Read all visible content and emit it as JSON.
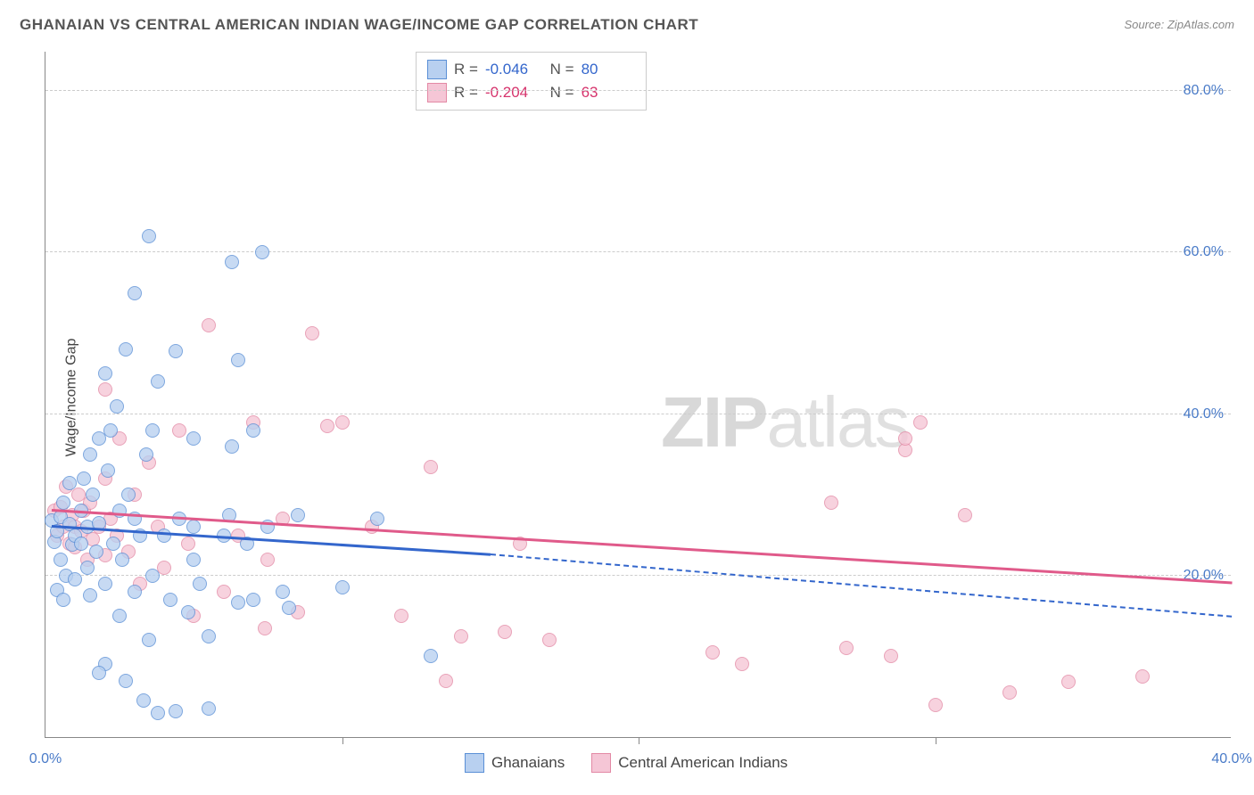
{
  "header": {
    "title": "GHANAIAN VS CENTRAL AMERICAN INDIAN WAGE/INCOME GAP CORRELATION CHART",
    "source_prefix": "Source: ",
    "source_name": "ZipAtlas.com"
  },
  "watermark": {
    "zip": "ZIP",
    "atlas": "atlas"
  },
  "chart": {
    "type": "scatter",
    "ylabel": "Wage/Income Gap",
    "xlim": [
      0,
      40
    ],
    "ylim": [
      0,
      85
    ],
    "xtick_step": 10,
    "ytick_step": 20,
    "xtick_format_suffix": "%",
    "ytick_format_suffix": "%",
    "xtick_labels": [
      "0.0%",
      "40.0%"
    ],
    "ytick_labels": [
      "20.0%",
      "40.0%",
      "60.0%",
      "80.0%"
    ],
    "background_color": "#ffffff",
    "grid_color": "#cccccc",
    "axis_color": "#888888",
    "label_color_axis": "#4a7bc8",
    "marker_radius": 8,
    "marker_stroke_width": 1.5,
    "series": [
      {
        "name": "Ghanaians",
        "color_fill": "#b8d0f0",
        "color_stroke": "#5a8fd6",
        "color_value": "#3366cc",
        "R": "-0.046",
        "N": "80",
        "trend": {
          "x1": 0.2,
          "y1": 26,
          "x2": 15,
          "y2": 22.5,
          "solid_until_x": 15,
          "dash_to_x": 40,
          "dash_to_y": 14.8
        },
        "points": [
          [
            0.2,
            26.8
          ],
          [
            0.3,
            24.2
          ],
          [
            0.4,
            25.5
          ],
          [
            0.5,
            27.3
          ],
          [
            0.5,
            22.0
          ],
          [
            0.6,
            29.0
          ],
          [
            0.7,
            20.0
          ],
          [
            0.8,
            26.4
          ],
          [
            0.8,
            31.5
          ],
          [
            0.9,
            23.8
          ],
          [
            1.0,
            25.0
          ],
          [
            0.4,
            18.2
          ],
          [
            0.6,
            17.0
          ],
          [
            1.0,
            19.5
          ],
          [
            1.2,
            24.0
          ],
          [
            1.2,
            28.0
          ],
          [
            1.3,
            32.0
          ],
          [
            1.4,
            21.0
          ],
          [
            1.4,
            26.0
          ],
          [
            1.5,
            35.0
          ],
          [
            1.5,
            17.5
          ],
          [
            1.6,
            30.0
          ],
          [
            1.7,
            23.0
          ],
          [
            1.8,
            37.0
          ],
          [
            1.8,
            26.5
          ],
          [
            2.0,
            19.0
          ],
          [
            2.0,
            45.0
          ],
          [
            2.1,
            33.0
          ],
          [
            2.2,
            38.0
          ],
          [
            2.3,
            24.0
          ],
          [
            2.4,
            41.0
          ],
          [
            2.5,
            28.0
          ],
          [
            2.5,
            15.0
          ],
          [
            2.6,
            22.0
          ],
          [
            2.7,
            48.0
          ],
          [
            2.8,
            30.0
          ],
          [
            3.0,
            27.0
          ],
          [
            3.0,
            55.0
          ],
          [
            3.0,
            18.0
          ],
          [
            3.2,
            25.0
          ],
          [
            3.4,
            35.0
          ],
          [
            3.5,
            62.0
          ],
          [
            3.5,
            12.0
          ],
          [
            3.6,
            38.0
          ],
          [
            3.6,
            20.0
          ],
          [
            3.8,
            44.0
          ],
          [
            4.0,
            25.0
          ],
          [
            4.2,
            17.0
          ],
          [
            4.4,
            47.8
          ],
          [
            4.5,
            27.0
          ],
          [
            4.8,
            15.5
          ],
          [
            5.0,
            22.0
          ],
          [
            5.0,
            26.0
          ],
          [
            5.0,
            37.0
          ],
          [
            5.2,
            19.0
          ],
          [
            5.5,
            12.5
          ],
          [
            6.0,
            25.0
          ],
          [
            6.2,
            27.5
          ],
          [
            6.3,
            58.8
          ],
          [
            6.3,
            36.0
          ],
          [
            6.5,
            16.7
          ],
          [
            6.5,
            46.7
          ],
          [
            6.8,
            24.0
          ],
          [
            7.0,
            38.0
          ],
          [
            7.0,
            17.0
          ],
          [
            7.3,
            60.0
          ],
          [
            7.5,
            26.0
          ],
          [
            8.0,
            18.0
          ],
          [
            8.2,
            16.0
          ],
          [
            8.5,
            27.5
          ],
          [
            3.8,
            3.0
          ],
          [
            4.4,
            3.2
          ],
          [
            5.5,
            3.5
          ],
          [
            3.3,
            4.5
          ],
          [
            2.7,
            7.0
          ],
          [
            2.0,
            9.0
          ],
          [
            1.8,
            8.0
          ],
          [
            10.0,
            18.5
          ],
          [
            11.2,
            27.0
          ],
          [
            13.0,
            10.0
          ]
        ]
      },
      {
        "name": "Central American Indians",
        "color_fill": "#f5c6d6",
        "color_stroke": "#e389a5",
        "color_value": "#d6336c",
        "R": "-0.204",
        "N": "63",
        "trend": {
          "x1": 0.2,
          "y1": 28,
          "x2": 40,
          "y2": 19,
          "solid_until_x": 40
        },
        "points": [
          [
            0.3,
            28.0
          ],
          [
            0.4,
            25.0
          ],
          [
            0.5,
            28.5
          ],
          [
            0.6,
            26.0
          ],
          [
            0.7,
            31.0
          ],
          [
            0.8,
            24.0
          ],
          [
            0.9,
            27.5
          ],
          [
            1.0,
            26.0
          ],
          [
            1.0,
            23.5
          ],
          [
            1.1,
            30.0
          ],
          [
            1.2,
            25.5
          ],
          [
            1.3,
            28.0
          ],
          [
            1.4,
            22.0
          ],
          [
            1.5,
            29.0
          ],
          [
            1.6,
            24.5
          ],
          [
            1.8,
            26.0
          ],
          [
            2.0,
            32.0
          ],
          [
            2.0,
            22.5
          ],
          [
            2.2,
            27.0
          ],
          [
            2.4,
            25.0
          ],
          [
            2.5,
            37.0
          ],
          [
            2.8,
            23.0
          ],
          [
            3.0,
            30.0
          ],
          [
            3.2,
            19.0
          ],
          [
            3.5,
            34.0
          ],
          [
            3.8,
            26.0
          ],
          [
            4.0,
            21.0
          ],
          [
            4.5,
            38.0
          ],
          [
            4.8,
            24.0
          ],
          [
            5.0,
            15.0
          ],
          [
            5.5,
            51.0
          ],
          [
            6.0,
            18.0
          ],
          [
            6.5,
            25.0
          ],
          [
            7.0,
            39.0
          ],
          [
            7.5,
            22.0
          ],
          [
            8.0,
            27.0
          ],
          [
            8.5,
            15.5
          ],
          [
            9.0,
            50.0
          ],
          [
            9.5,
            38.5
          ],
          [
            10.0,
            39.0
          ],
          [
            7.4,
            13.5
          ],
          [
            2.0,
            43.0
          ],
          [
            11.0,
            26.0
          ],
          [
            12.0,
            15.0
          ],
          [
            13.0,
            33.5
          ],
          [
            14.0,
            12.5
          ],
          [
            15.5,
            13.0
          ],
          [
            16.0,
            24.0
          ],
          [
            17.0,
            12.0
          ],
          [
            22.5,
            10.5
          ],
          [
            23.5,
            9.0
          ],
          [
            26.5,
            29.0
          ],
          [
            29.0,
            35.5
          ],
          [
            29.5,
            39.0
          ],
          [
            31.0,
            27.5
          ],
          [
            30.0,
            4.0
          ],
          [
            32.5,
            5.5
          ],
          [
            34.5,
            6.8
          ],
          [
            37.0,
            7.5
          ],
          [
            28.5,
            10.0
          ],
          [
            27.0,
            11.0
          ],
          [
            29.0,
            37.0
          ],
          [
            13.5,
            7.0
          ]
        ]
      }
    ],
    "bottom_legend": [
      {
        "label": "Ghanaians",
        "swatch_fill": "#b8d0f0",
        "swatch_stroke": "#5a8fd6"
      },
      {
        "label": "Central American Indians",
        "swatch_fill": "#f5c6d6",
        "swatch_stroke": "#e389a5"
      }
    ]
  }
}
